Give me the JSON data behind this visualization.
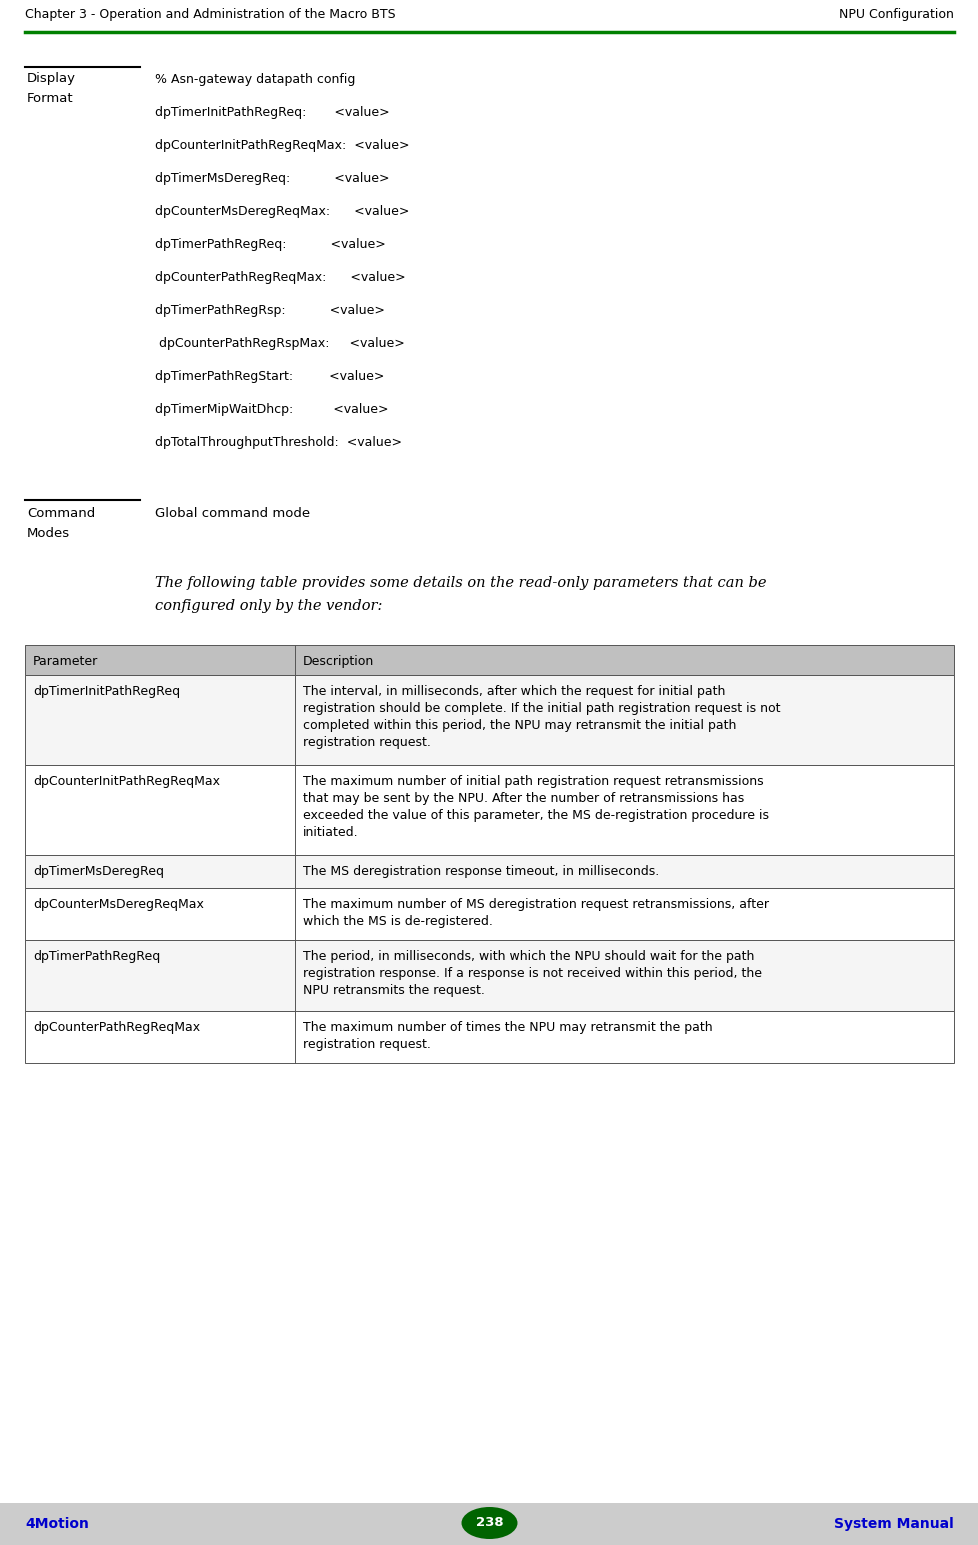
{
  "header_left": "Chapter 3 - Operation and Administration of the Macro BTS",
  "header_right": "NPU Configuration",
  "header_line_color": "#008000",
  "footer_left": "4Motion",
  "footer_center": "238",
  "footer_right": "System Manual",
  "footer_bg": "#cccccc",
  "footer_text_color": "#0000cc",
  "footer_badge_color": "#006400",
  "section1_content": [
    "% Asn-gateway datapath config",
    "dpTimerInitPathRegReq:       <value>",
    "dpCounterInitPathRegReqMax:  <value>",
    "dpTimerMsDeregReq:           <value>",
    "dpCounterMsDeregReqMax:      <value>",
    "dpTimerPathRegReq:           <value>",
    "dpCounterPathRegReqMax:      <value>",
    "dpTimerPathRegRsp:           <value>",
    " dpCounterPathRegRspMax:     <value>",
    "dpTimerPathRegStart:         <value>",
    "dpTimerMipWaitDhcp:          <value>",
    "dpTotalThroughputThreshold:  <value>"
  ],
  "section2_content": "Global command mode",
  "intro_line1": "The following table provides some details on the read-only parameters that can be",
  "intro_line2": "configured only by the vendor:",
  "table_headers": [
    "Parameter",
    "Description"
  ],
  "table_rows": [
    [
      "dpTimerInitPathRegReq",
      "The interval, in milliseconds, after which the request for initial path\nregistration should be complete. If the initial path registration request is not\ncompleted within this period, the NPU may retransmit the initial path\nregistration request."
    ],
    [
      "dpCounterInitPathRegReqMax",
      "The maximum number of initial path registration request retransmissions\nthat may be sent by the NPU. After the number of retransmissions has\nexceeded the value of this parameter, the MS de-registration procedure is\ninitiated."
    ],
    [
      "dpTimerMsDeregReq",
      "The MS deregistration response timeout, in milliseconds."
    ],
    [
      "dpCounterMsDeregReqMax",
      "The maximum number of MS deregistration request retransmissions, after\nwhich the MS is de-registered."
    ],
    [
      "dpTimerPathRegReq",
      "The period, in milliseconds, with which the NPU should wait for the path\nregistration response. If a response is not received within this period, the\nNPU retransmits the request."
    ],
    [
      "dpCounterPathRegReqMax",
      "The maximum number of times the NPU may retransmit the path\nregistration request."
    ]
  ],
  "table_header_bg": "#c0c0c0",
  "table_row_bg_odd": "#f5f5f5",
  "table_row_bg_even": "#ffffff",
  "table_border_color": "#555555",
  "bg_color": "#ffffff",
  "text_color": "#000000",
  "sans_font": "DejaVu Sans",
  "serif_font": "DejaVu Serif",
  "mono_font": "DejaVu Sans Mono"
}
